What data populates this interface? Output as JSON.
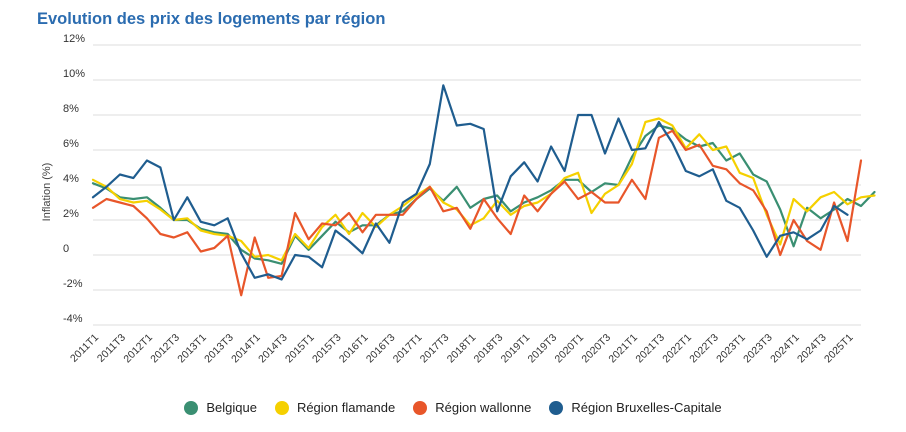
{
  "chart_data": {
    "type": "line",
    "title": "Evolution des prix des logements par région",
    "ylabel": "Inflation (%)",
    "xlabel": "",
    "ylim": [
      -4,
      12
    ],
    "y_ticks": [
      "-4%",
      "-2%",
      "0",
      "2%",
      "4%",
      "6%",
      "8%",
      "10%",
      "12%"
    ],
    "y_tick_values": [
      -4,
      -2,
      0,
      2,
      4,
      6,
      8,
      10,
      12
    ],
    "x_tick_labels": [
      "2011T1",
      "2011T3",
      "2012T1",
      "2012T3",
      "2013T1",
      "2013T3",
      "2014T1",
      "2014T3",
      "2015T1",
      "2015T3",
      "2016T1",
      "2016T3",
      "2017T1",
      "2017T3",
      "2018T1",
      "2018T3",
      "2019T1",
      "2019T3",
      "2020T1",
      "2020T3",
      "2021T1",
      "2021T3",
      "2022T1",
      "2022T3",
      "2023T1",
      "2023T3",
      "2024T1",
      "2024T3",
      "2025T1"
    ],
    "grid": true,
    "legend_position": "bottom",
    "series": [
      {
        "name": "Belgique",
        "color": "#3a8f72",
        "values": [
          4.1,
          3.8,
          3.3,
          3.2,
          3.3,
          2.7,
          2.0,
          2.0,
          1.5,
          1.3,
          1.2,
          0.3,
          -0.2,
          -0.3,
          -0.5,
          1.1,
          0.3,
          1.1,
          1.9,
          1.3,
          1.7,
          1.7,
          2.3,
          2.5,
          3.2,
          3.8,
          3.1,
          3.9,
          2.7,
          3.2,
          3.4,
          2.5,
          3.0,
          3.3,
          3.7,
          4.3,
          4.3,
          3.6,
          4.1,
          4.0,
          5.6,
          6.8,
          7.4,
          7.2,
          6.6,
          6.2,
          6.4,
          5.4,
          5.8,
          4.6,
          4.2,
          2.6,
          0.5,
          2.7,
          2.1,
          2.6,
          3.2,
          2.8,
          3.6
        ]
      },
      {
        "name": "Région flamande",
        "color": "#f5d000",
        "values": [
          4.3,
          3.9,
          3.2,
          3.0,
          3.1,
          2.6,
          2.0,
          2.1,
          1.4,
          1.2,
          1.1,
          0.8,
          -0.1,
          0.0,
          -0.3,
          1.2,
          0.4,
          1.6,
          2.3,
          1.2,
          2.4,
          1.6,
          2.3,
          2.8,
          3.4,
          3.9,
          3.0,
          2.6,
          1.7,
          2.1,
          3.1,
          2.3,
          2.8,
          3.0,
          3.5,
          4.4,
          4.7,
          2.4,
          3.5,
          4.0,
          5.2,
          7.6,
          7.8,
          7.4,
          6.1,
          6.9,
          6.0,
          6.2,
          4.7,
          4.4,
          2.3,
          0.6,
          3.2,
          2.5,
          3.3,
          3.6,
          2.9,
          3.3,
          3.4
        ]
      },
      {
        "name": "Région wallonne",
        "color": "#e8562a",
        "values": [
          2.7,
          3.2,
          3.0,
          2.8,
          2.1,
          1.2,
          1.0,
          1.3,
          0.2,
          0.4,
          1.1,
          -2.3,
          1.0,
          -1.3,
          -1.2,
          2.4,
          0.9,
          1.8,
          1.7,
          2.4,
          1.3,
          2.3,
          2.3,
          2.3,
          3.2,
          3.9,
          2.5,
          2.7,
          1.5,
          3.2,
          2.1,
          1.2,
          3.4,
          2.5,
          3.5,
          4.2,
          3.2,
          3.6,
          3.0,
          3.0,
          4.3,
          3.2,
          6.7,
          7.1,
          6.0,
          6.3,
          5.1,
          4.9,
          4.1,
          3.7,
          2.5,
          0.0,
          2.0,
          0.8,
          0.3,
          3.0,
          0.8,
          5.4
        ]
      },
      {
        "name": "Région Bruxelles-Capitale",
        "color": "#1f5d8f",
        "values": [
          3.3,
          3.9,
          4.6,
          4.4,
          5.4,
          5.0,
          2.0,
          3.3,
          1.9,
          1.7,
          2.1,
          0.1,
          -1.3,
          -1.1,
          -1.4,
          0.0,
          -0.1,
          -0.7,
          1.4,
          0.8,
          0.1,
          1.8,
          0.7,
          3.0,
          3.5,
          5.2,
          9.7,
          7.4,
          7.5,
          7.2,
          2.5,
          4.5,
          5.3,
          4.2,
          6.2,
          4.8,
          8.0,
          8.0,
          5.8,
          7.8,
          6.0,
          6.1,
          7.6,
          6.4,
          4.8,
          4.5,
          4.9,
          3.1,
          2.7,
          1.4,
          -0.1,
          1.1,
          1.3,
          0.9,
          1.4,
          2.8,
          2.3
        ]
      }
    ]
  }
}
